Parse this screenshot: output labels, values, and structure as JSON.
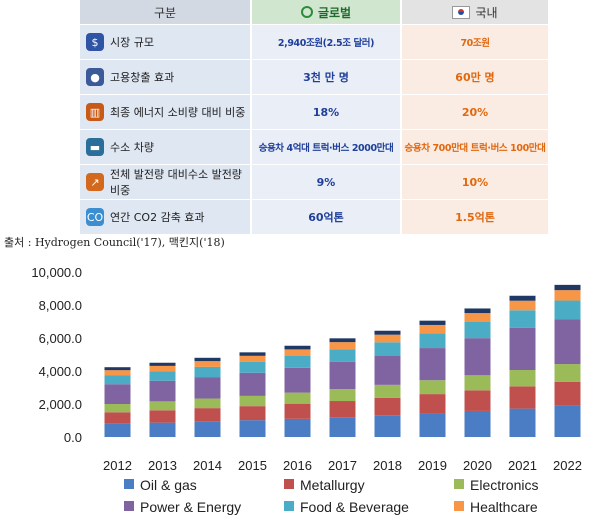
{
  "table": {
    "header": {
      "category": "구분",
      "global": "글로벌",
      "domestic": "국내"
    },
    "rows": [
      {
        "icon": "money-bag-icon",
        "color": "#2f53a5",
        "label": "시장 규모",
        "global": "2,940조원(2.5조 달러)",
        "domestic": "70조원"
      },
      {
        "icon": "people-icon",
        "color": "#3a5a99",
        "label": "고용창출 효과",
        "global": "3천 만 명",
        "domestic": "60만 명"
      },
      {
        "icon": "factory-icon",
        "color": "#c85a18",
        "label": "최종 에너지 소비량 대비 비중",
        "global": "18%",
        "domestic": "20%"
      },
      {
        "icon": "car-icon",
        "color": "#2a6f9a",
        "label": "수소 차량",
        "global": "승용차 4억대 트럭·버스 2000만대",
        "domestic": "승용차 700만대 트럭·버스 100만대"
      },
      {
        "icon": "trend-chart-icon",
        "color": "#d2691e",
        "label": "전체 발전량 대비수소 발전량비중",
        "global": "9%",
        "domestic": "10%"
      },
      {
        "icon": "co2-icon",
        "color": "#3b8fd0",
        "label": "연간 CO2 감축 효과",
        "global": "60억톤",
        "domestic": "1.5억톤"
      }
    ]
  },
  "source": "출처 : Hydrogen Council('17), 맥킨지('18)",
  "chart_data": {
    "type": "bar",
    "stacked": true,
    "categories": [
      "2012",
      "2013",
      "2014",
      "2015",
      "2016",
      "2017",
      "2018",
      "2019",
      "2020",
      "2021",
      "2022"
    ],
    "ylim": [
      0,
      10000
    ],
    "yticks": [
      "0.0",
      "2,000.0",
      "4,000.0",
      "6,000.0",
      "8,000.0",
      "10,000.0"
    ],
    "series": [
      {
        "name": "Oil & gas",
        "color": "#4a7dc4",
        "values": [
          800,
          870,
          950,
          1020,
          1100,
          1200,
          1320,
          1450,
          1580,
          1720,
          1900
        ]
      },
      {
        "name": "Metallurgy",
        "color": "#c0504d",
        "values": [
          700,
          750,
          800,
          850,
          920,
          980,
          1060,
          1150,
          1250,
          1350,
          1450
        ]
      },
      {
        "name": "Electronics",
        "color": "#9bbb59",
        "values": [
          500,
          540,
          580,
          620,
          670,
          720,
          780,
          840,
          910,
          990,
          1070
        ]
      },
      {
        "name": "Power & Energy",
        "color": "#8064a2",
        "values": [
          1200,
          1250,
          1300,
          1400,
          1500,
          1650,
          1750,
          1950,
          2250,
          2550,
          2700
        ]
      },
      {
        "name": "Food & Beverage",
        "color": "#4bacc6",
        "values": [
          550,
          580,
          620,
          660,
          720,
          770,
          830,
          900,
          980,
          1070,
          1150
        ]
      },
      {
        "name": "Healthcare",
        "color": "#f79646",
        "values": [
          300,
          320,
          350,
          370,
          400,
          430,
          460,
          500,
          540,
          580,
          630
        ]
      },
      {
        "name": "",
        "color": "#1f3864",
        "values": [
          180,
          190,
          200,
          210,
          220,
          230,
          240,
          260,
          280,
          300,
          320
        ]
      }
    ]
  }
}
